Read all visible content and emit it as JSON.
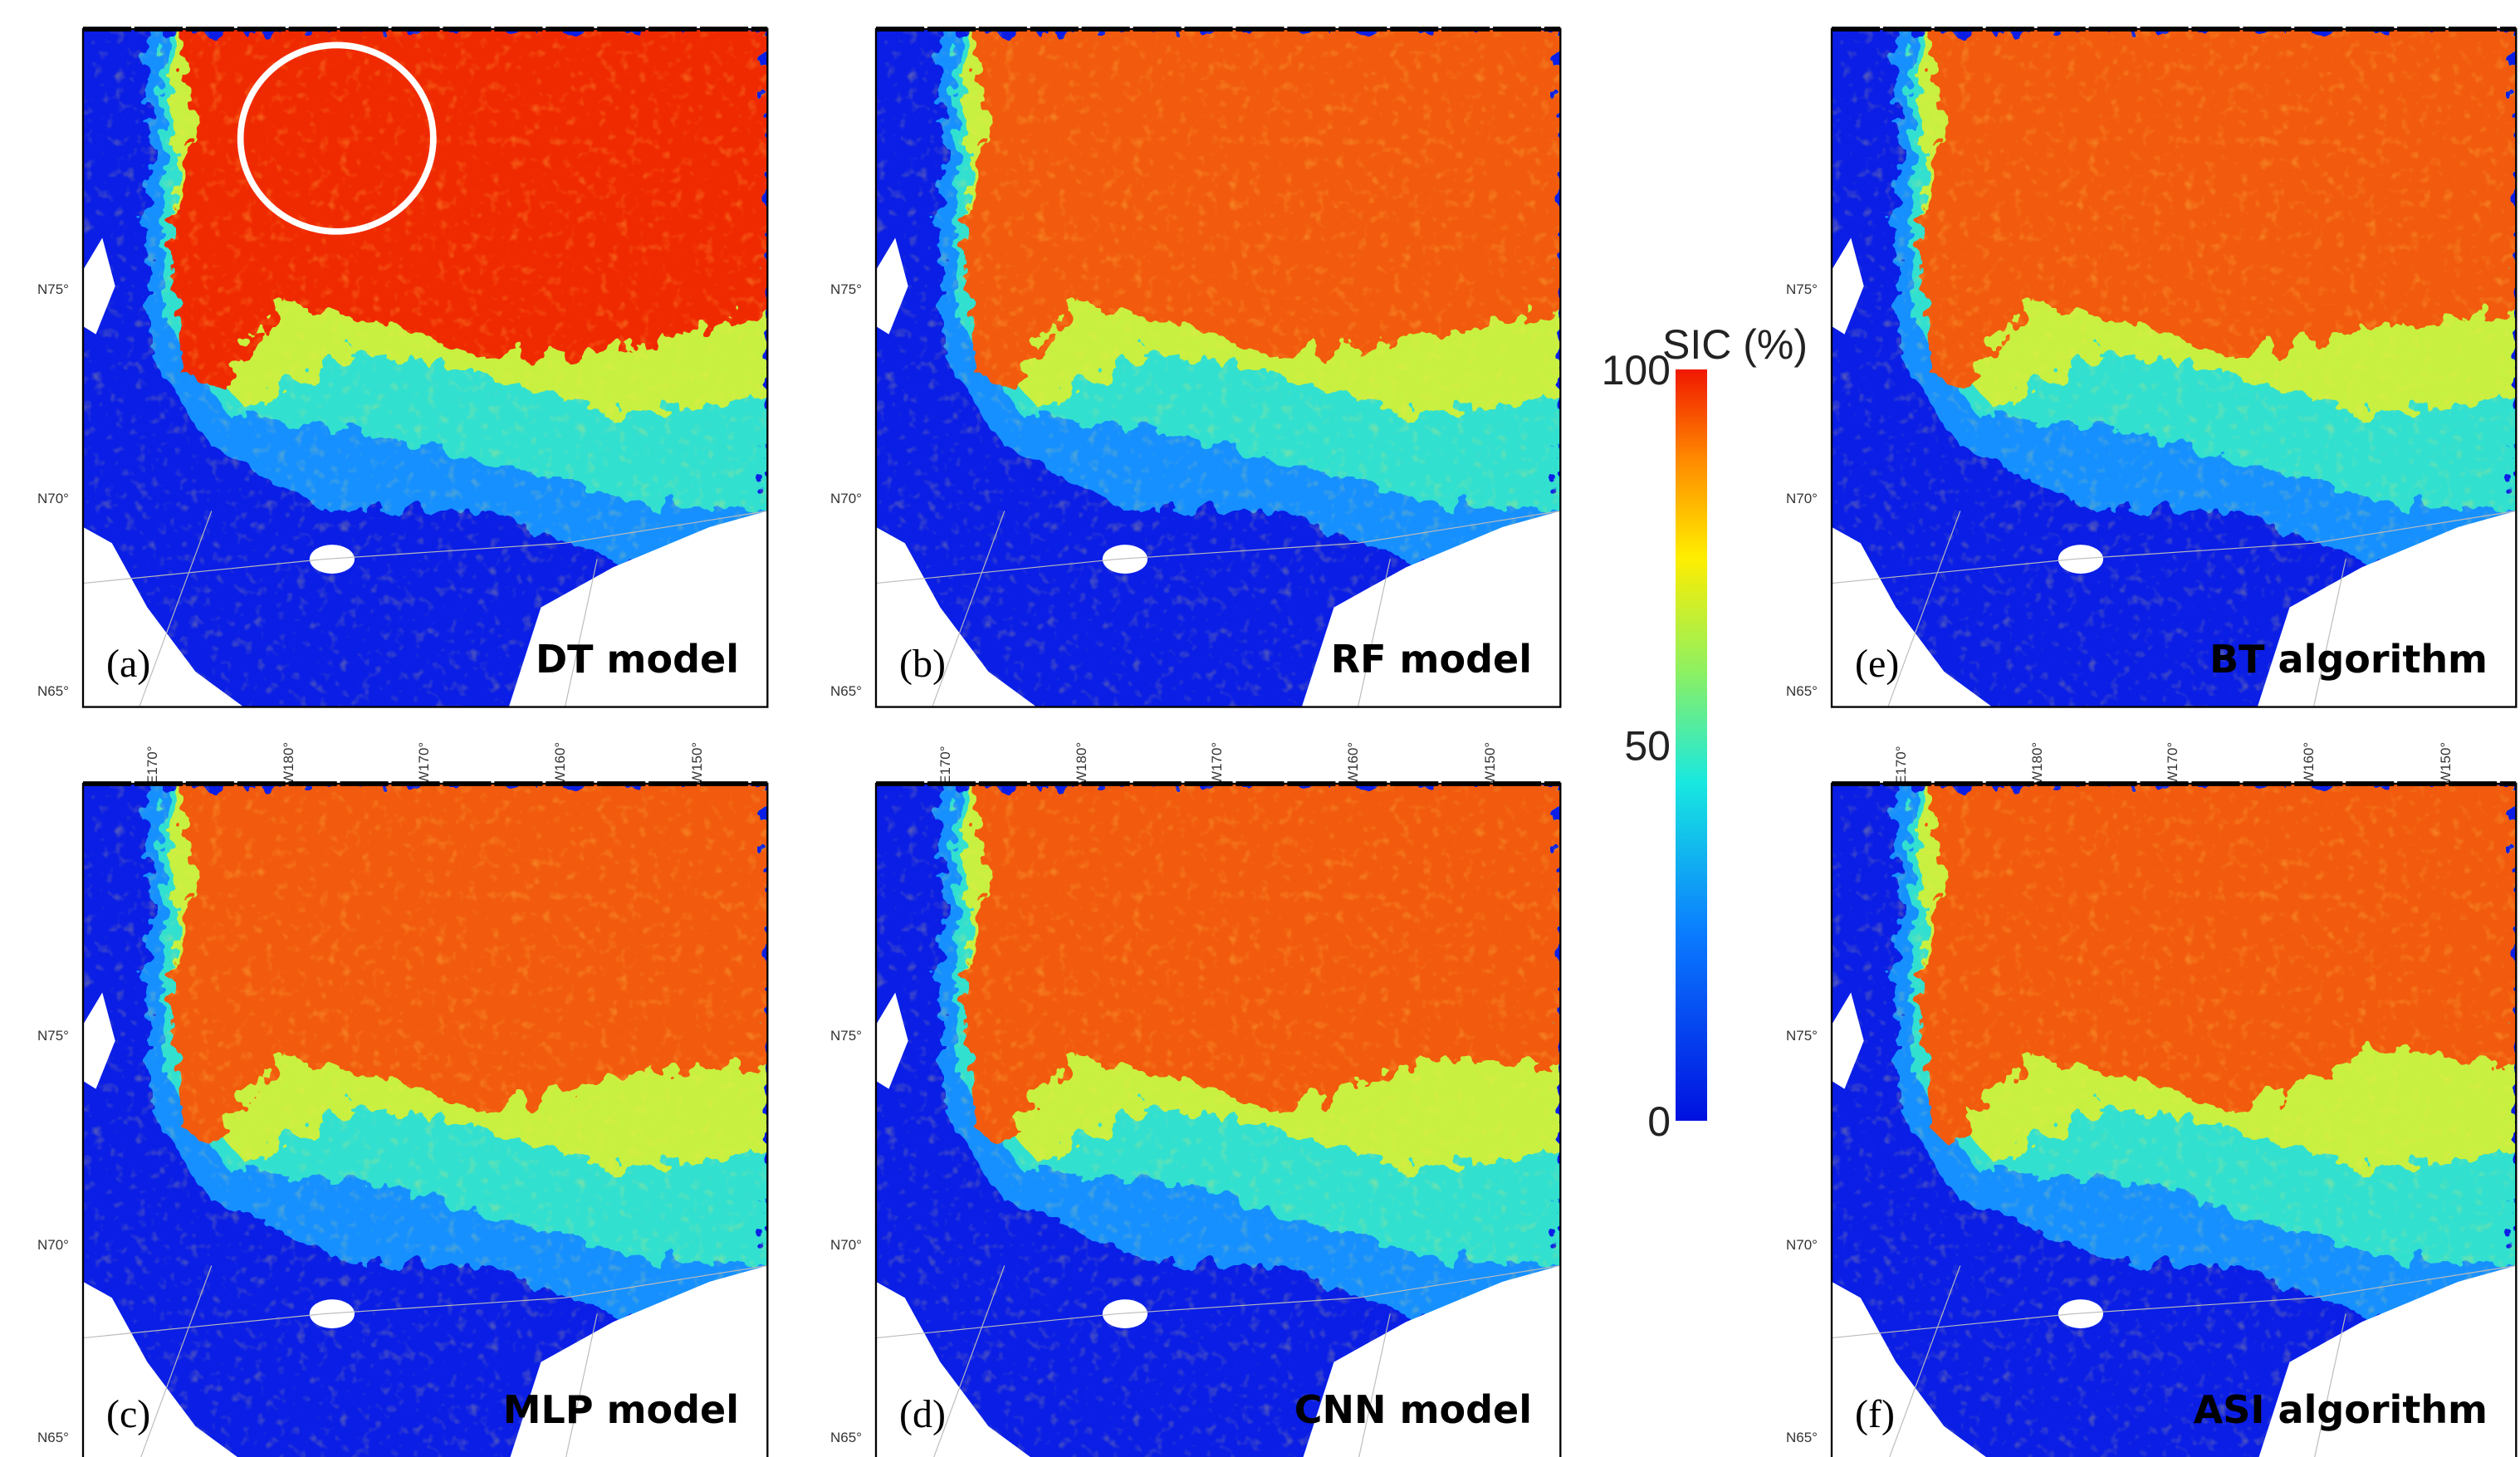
{
  "panels": [
    {
      "label": "(a)",
      "title": "DT model"
    },
    {
      "label": "(b)",
      "title": "RF model"
    },
    {
      "label": "(e)",
      "title": "BT algorithm"
    },
    {
      "label": "(c)",
      "title": "MLP model"
    },
    {
      "label": "(d)",
      "title": "CNN model"
    },
    {
      "label": "(f)",
      "title": "ASI algorithm"
    }
  ],
  "latitude_labels": [
    "N75°",
    "N70°",
    "N65°"
  ],
  "longitude_labels": [
    "E170°",
    "W180°",
    "W170°",
    "W160°",
    "W150°"
  ],
  "colorbar": {
    "title": "SIC (%)",
    "ticks": [
      100,
      50,
      0
    ]
  }
}
